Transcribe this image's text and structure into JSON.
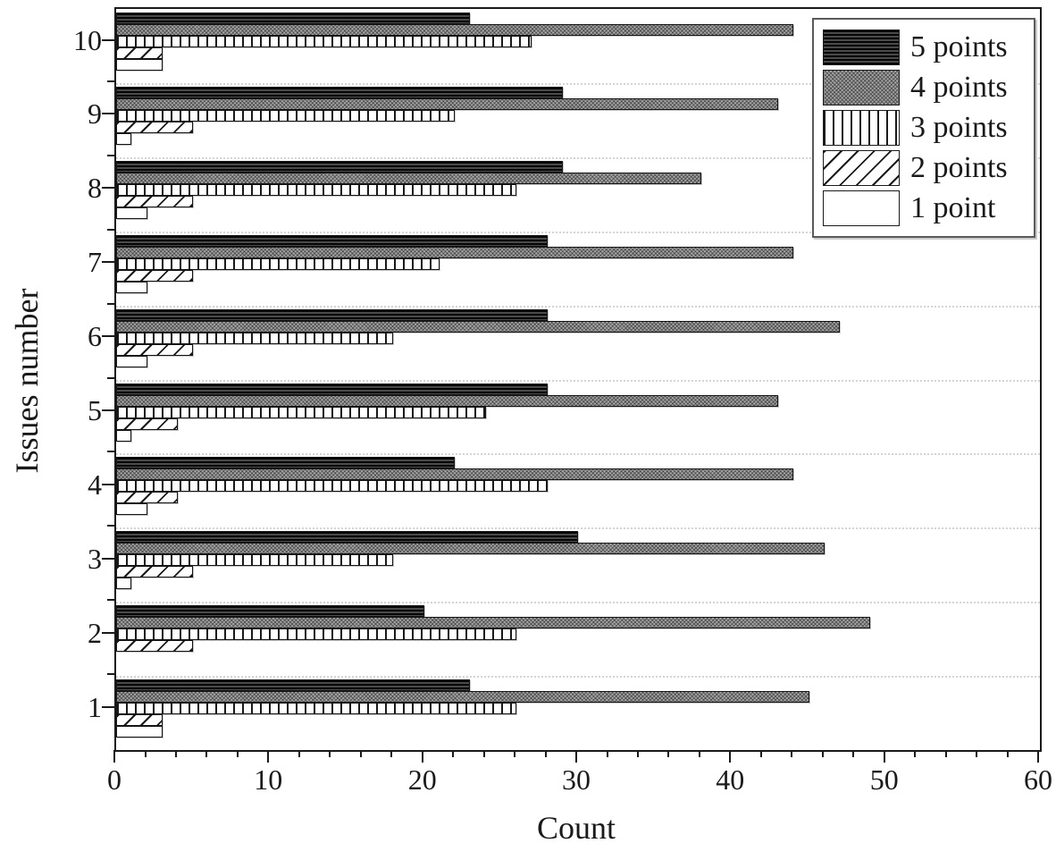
{
  "chart_data": {
    "type": "bar",
    "orientation": "horizontal",
    "title": "",
    "xlabel": "Count",
    "ylabel": "Issues number",
    "xlim": [
      0,
      60
    ],
    "x_major_ticks": [
      0,
      10,
      20,
      30,
      40,
      50,
      60
    ],
    "x_minor_step": 2,
    "grid": "horizontal-dotted",
    "legend_position": "top-right",
    "categories": [
      1,
      2,
      3,
      4,
      5,
      6,
      7,
      8,
      9,
      10
    ],
    "series": [
      {
        "name": "5 points",
        "pattern": "horizontal-stripes-dark",
        "values": [
          23,
          20,
          30,
          22,
          28,
          28,
          28,
          29,
          29,
          23
        ]
      },
      {
        "name": "4 points",
        "pattern": "gray-crosshatch",
        "values": [
          45,
          49,
          46,
          44,
          43,
          47,
          44,
          38,
          43,
          44
        ]
      },
      {
        "name": "3 points",
        "pattern": "vertical-lines",
        "values": [
          26,
          26,
          18,
          28,
          24,
          18,
          21,
          26,
          22,
          27
        ]
      },
      {
        "name": "2 points",
        "pattern": "diagonal-lines",
        "values": [
          3,
          5,
          5,
          4,
          4,
          5,
          5,
          5,
          5,
          3
        ]
      },
      {
        "name": "1 point",
        "pattern": "plain-white",
        "values": [
          3,
          0,
          1,
          2,
          1,
          2,
          2,
          2,
          1,
          3
        ]
      }
    ],
    "colors": {
      "axis": "#1a1a1a",
      "bar_border": "#141414",
      "dark_fill": "#3a3a3a",
      "gray_fill": "#a3a3a3",
      "white_fill": "#ffffff",
      "gridline": "#d4d4d4",
      "background": "#ffffff"
    }
  }
}
